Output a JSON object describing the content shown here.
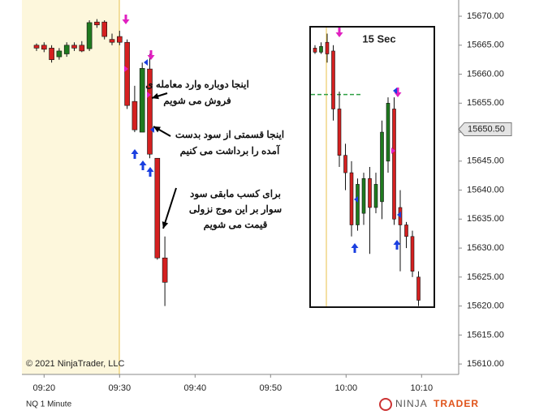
{
  "chart_data": [
    {
      "type": "candlestick",
      "title": "NQ 1 Minute",
      "copyright": "© 2021 NinjaTrader, LLC",
      "logo": [
        "NINJA",
        "TRADER"
      ],
      "categories": [
        null,
        "09:20",
        null,
        null,
        null,
        null,
        null,
        null,
        null,
        null,
        null,
        "09:30",
        null,
        null,
        null,
        null,
        null,
        null,
        null,
        null,
        null,
        "09:40",
        null,
        null,
        null,
        null,
        null,
        null,
        null,
        null,
        null,
        "09:50",
        null,
        null,
        null,
        null,
        null,
        null,
        null,
        null,
        null,
        "10:00",
        null,
        null,
        null,
        null,
        null,
        null,
        null,
        null,
        null,
        "10:10"
      ],
      "open": [
        15665,
        15665,
        15664.5,
        15663,
        15663.5,
        15665,
        15665,
        15664.4,
        15669,
        15669,
        15666,
        15666.5,
        15665.5,
        15655.3,
        15650,
        15660.9,
        15645.5,
        15628.3,
        null,
        null,
        null,
        null,
        null,
        null,
        null,
        null,
        null,
        null,
        null,
        null,
        null,
        null,
        null,
        null,
        null,
        null,
        null,
        null,
        null,
        null,
        null,
        null,
        null,
        null,
        null,
        null,
        null,
        null,
        null,
        null,
        null,
        null
      ],
      "high": [
        15665.3,
        15665.5,
        15665,
        15664.5,
        15665.5,
        15665.5,
        15665.7,
        15669.3,
        15669.5,
        15669.3,
        15667,
        15667.5,
        15666,
        15658,
        15662,
        15663.5,
        15645.5,
        15632,
        null,
        null,
        null,
        null,
        null,
        null,
        null,
        null,
        null,
        null,
        null,
        null,
        null,
        null,
        null,
        null,
        null,
        null,
        null,
        null,
        null,
        null,
        null,
        null,
        null,
        null,
        null,
        null,
        null,
        null,
        null,
        null,
        null,
        null
      ],
      "low": [
        15664,
        15663.8,
        15662,
        15662.5,
        15663,
        15664,
        15663.8,
        15664,
        15668,
        15666,
        15665,
        15665,
        15654,
        15650,
        15650,
        15645.5,
        15628,
        15620,
        null,
        null,
        null,
        null,
        null,
        null,
        null,
        null,
        null,
        null,
        null,
        null,
        null,
        null,
        null,
        null,
        null,
        null,
        null,
        null,
        null,
        null,
        null,
        null,
        null,
        null,
        null,
        null,
        null,
        null,
        null,
        null,
        null,
        null
      ],
      "close": [
        15664.5,
        15664.3,
        15662.5,
        15664,
        15665,
        15664.5,
        15664,
        15668.9,
        15668.5,
        15666.5,
        15665.5,
        15665.5,
        15654.6,
        15650.4,
        15661,
        15646.2,
        15628.3,
        15624.1,
        null,
        null,
        null,
        null,
        null,
        null,
        null,
        null,
        null,
        null,
        null,
        null,
        null,
        null,
        null,
        null,
        null,
        null,
        null,
        null,
        null,
        null,
        null,
        null,
        null,
        null,
        null,
        null,
        null,
        null,
        null,
        null,
        null,
        null
      ],
      "up_color": "#1f7a1f",
      "down_color": "#d42020",
      "ylim": [
        15608.2,
        15672.8
      ],
      "yticks": [
        {
          "value": 15610,
          "label": "15610.00"
        },
        {
          "value": 15615,
          "label": "15615.00"
        },
        {
          "value": 15620,
          "label": "15620.00"
        },
        {
          "value": 15625,
          "label": "15625.00"
        },
        {
          "value": 15630,
          "label": "15630.00"
        },
        {
          "value": 15635,
          "label": "15635.00"
        },
        {
          "value": 15640,
          "label": "15640.00"
        },
        {
          "value": 15645,
          "label": "15645.00"
        },
        {
          "value": 15650,
          "label": "15650.00"
        },
        {
          "value": 15655,
          "label": "15655.00"
        },
        {
          "value": 15660,
          "label": "15660.00"
        },
        {
          "value": 15665,
          "label": "15665.00"
        },
        {
          "value": 15670,
          "label": "15670.00"
        }
      ],
      "last_price": {
        "value": 15650.5,
        "label": "15650.50"
      },
      "annotations": [
        [
          "اینجا دوباره وارد معامله ی",
          "فروش می شویم"
        ],
        [
          "اینجا قسمتی از سود بدست",
          "آمده را برداشت می کنیم"
        ],
        [
          "برای کسب مابقی سود",
          "سوار بر این موج نزولی",
          "قیمت می شویم"
        ]
      ]
    },
    {
      "type": "candlestick",
      "title": "15 Sec",
      "open": [
        15664.5,
        15663.8,
        15665.5,
        15664,
        15654,
        15646,
        15643,
        15634,
        15636,
        15642,
        15637,
        15638,
        15645,
        15654,
        15637,
        15634,
        15632,
        15625
      ],
      "high": [
        15665,
        15665.5,
        15667,
        15665,
        15657,
        15648,
        15645,
        15642,
        15643,
        15644,
        15643,
        15652,
        15656,
        15656,
        15640,
        15634.5,
        15633,
        15626
      ],
      "low": [
        15663.5,
        15663.5,
        15662,
        15652,
        15644,
        15640,
        15632,
        15633,
        15634,
        15629,
        15636,
        15635,
        15643,
        15634,
        15626,
        15630,
        15625,
        15620
      ],
      "close": [
        15663.8,
        15664.8,
        15663.5,
        15654,
        15646,
        15643,
        15634,
        15641,
        15642,
        15637,
        15641,
        15650,
        15655,
        15635,
        15634,
        15632,
        15626,
        15621
      ],
      "ylim": [
        15608.2,
        15672.8
      ],
      "reference_line": 15656.5,
      "reference_color": "#2ea043"
    }
  ]
}
